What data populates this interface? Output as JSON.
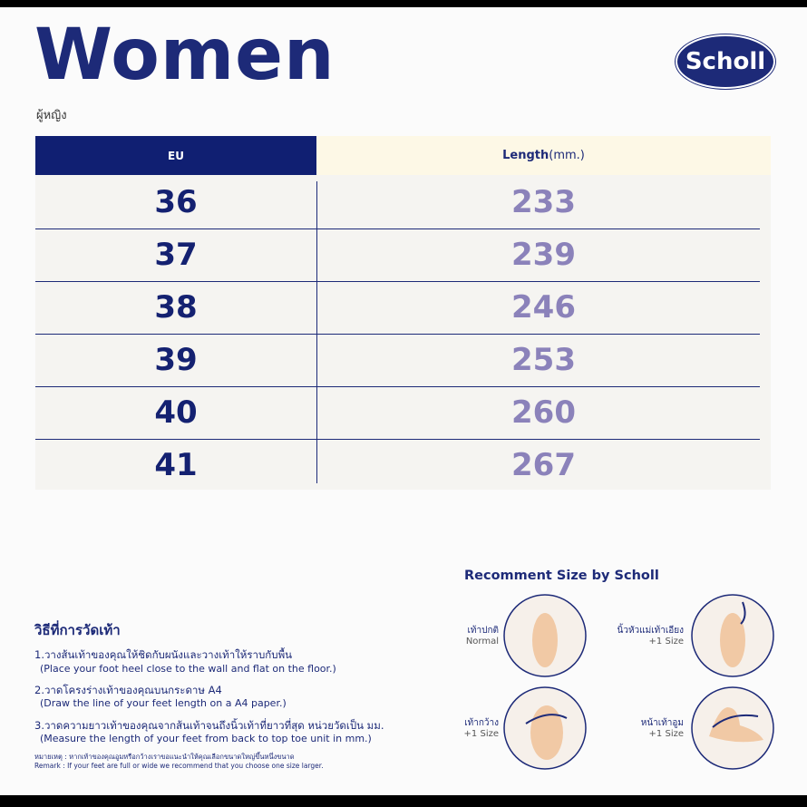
{
  "header": {
    "title": "Women",
    "subtitle": "ผู้หญิง",
    "logo": "Scholl"
  },
  "table": {
    "columns": [
      {
        "label": "EU"
      },
      {
        "label": "Length",
        "unit": "(mm.)"
      }
    ],
    "rows": [
      [
        36,
        233
      ],
      [
        37,
        239
      ],
      [
        38,
        246
      ],
      [
        39,
        253
      ],
      [
        40,
        260
      ],
      [
        41,
        267
      ]
    ]
  },
  "instructions": {
    "title": "วิธีที่การวัดเท้า",
    "steps": [
      {
        "th": "1.วางส้นเท้าของคุณให้ชิดกับผนังและวางเท้าให้ราบกับพื้น",
        "en": "(Place your foot heel close to the wall and flat on the floor.)"
      },
      {
        "th": "2.วาดโครงร่างเท้าของคุณบนกระดาษ A4",
        "en": "(Draw the line of your feet length on a A4 paper.)"
      },
      {
        "th": "3.วาดความยาวเท้าของคุณจากส้นเท้าจนถึงนิ้วเท้าที่ยาวที่สุด หน่วยวัดเป็น มม.",
        "en": "(Measure the length of your feet from back to top toe unit in mm.)"
      }
    ],
    "remark": {
      "th": "หมายเหตุ : หากเท้าของคุณอูมหรือกว้างเราขอแนะนำให้คุณเลือกขนาดใหญ่ขึ้นหนึ่งขนาด",
      "en": "Remark : If your feet are full or wide we recommend that you choose one size larger."
    }
  },
  "recommend": {
    "title": "Recomment Size by Scholl",
    "cases": [
      {
        "label": "เท้าปกติ",
        "note": "Normal"
      },
      {
        "label": "นิ้วหัวแม่เท้าเอียง",
        "note": "+1 Size"
      },
      {
        "label": "เท้ากว้าง",
        "note": "+1 Size"
      },
      {
        "label": "หน้าเท้าอูม",
        "note": "+1 Size"
      }
    ]
  }
}
